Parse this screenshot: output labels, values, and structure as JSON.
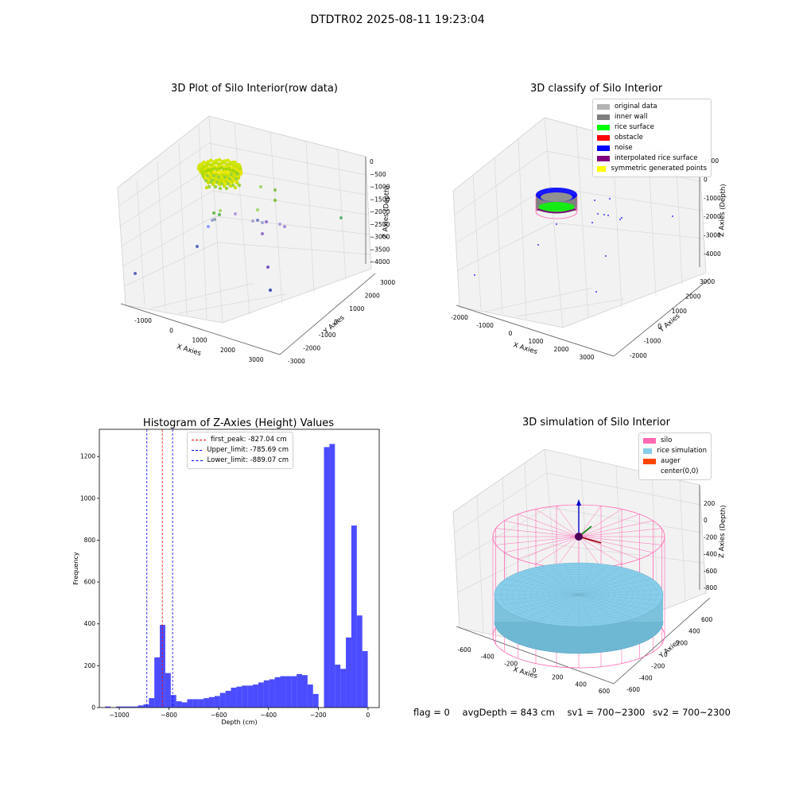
{
  "suptitle": "DTDTR02 2025-08-11 19:23:04",
  "colors": {
    "silo_wire": "#ff69b4",
    "rice_sim": "#87ceeb",
    "hist_bar": "#0000ff",
    "peak_line": "#ff0000",
    "limit_line": "#0000ff",
    "grid": "#d9d9d9",
    "pane_bg": "#f2f2f2"
  },
  "panels": {
    "raw": {
      "title": "3D Plot of Silo Interior(row data)",
      "xlabel": "X Axies",
      "ylabel": "Y Axies",
      "zlabel": "Z Axies (Depth)",
      "xticks": [
        "-1000",
        "0",
        "1000",
        "2000",
        "3000"
      ],
      "yticks": [
        "-3000",
        "-2000",
        "-1000",
        "0",
        "1000",
        "2000",
        "3000"
      ],
      "zticks": [
        "0",
        "−500",
        "−1000",
        "−1500",
        "−2000",
        "−2500",
        "−3000",
        "−3500",
        "−4000"
      ]
    },
    "classify": {
      "title": "3D classify of Silo Interior",
      "xlabel": "X Axies",
      "ylabel": "Y Axies",
      "zlabel": "Z Axies (Depth)",
      "xticks": [
        "-2000",
        "-1000",
        "0",
        "1000",
        "2000",
        "3000"
      ],
      "yticks": [
        "-2000",
        "-1000",
        "0",
        "1000",
        "2000",
        "3000"
      ],
      "zticks": [
        "1000",
        "0",
        "-1000",
        "-2000",
        "-3000",
        "-4000"
      ],
      "legend": [
        {
          "label": "original data",
          "color": "#b3b3b3"
        },
        {
          "label": "inner wall",
          "color": "#808080"
        },
        {
          "label": "rice surface",
          "color": "#00ff00"
        },
        {
          "label": "obstacle",
          "color": "#ff0000"
        },
        {
          "label": "noise",
          "color": "#0000ff"
        },
        {
          "label": "interpolated rice surface",
          "color": "#800080"
        },
        {
          "label": "symmetric generated points",
          "color": "#ffff00"
        }
      ]
    },
    "simulation": {
      "title": "3D simulation of Silo Interior",
      "xlabel": "X Axies",
      "ylabel": "Y Axies",
      "zlabel": "Z Axies (Depth)",
      "xticks": [
        "-600",
        "-400",
        "-200",
        "0",
        "200",
        "400",
        "600"
      ],
      "yticks": [
        "-600",
        "-400",
        "-200",
        "0",
        "200",
        "400",
        "600"
      ],
      "zticks": [
        "200",
        "0",
        "-200",
        "-400",
        "-600",
        "-800"
      ],
      "legend": [
        {
          "label": "silo",
          "color": "#ff69b4"
        },
        {
          "label": "rice simulation",
          "color": "#87ceeb"
        },
        {
          "label": "auger",
          "color": "#ff4500"
        },
        {
          "label": "center(0,0)",
          "color": ""
        }
      ]
    }
  },
  "status": {
    "flag": "flag = 0",
    "avg": "avgDepth = 843 cm",
    "sv1": "sv1 = 700~2300",
    "sv2": "sv2 = 700~2300"
  },
  "chart_data": {
    "type": "bar",
    "title": "Histogram of Z-Axies (Height) Values",
    "xlabel": "Depth (cm)",
    "ylabel": "Frequency",
    "xlim": [
      -1080,
      45
    ],
    "ylim": [
      0,
      1330
    ],
    "xticks": [
      -1000,
      -800,
      -600,
      -400,
      -200,
      0
    ],
    "yticks": [
      0,
      200,
      400,
      600,
      800,
      1000,
      1200
    ],
    "bin_width": 22,
    "bins": [
      {
        "x": -1046,
        "y": 5
      },
      {
        "x": -1024,
        "y": 0
      },
      {
        "x": -1002,
        "y": 5
      },
      {
        "x": -980,
        "y": 5
      },
      {
        "x": -958,
        "y": 5
      },
      {
        "x": -936,
        "y": 5
      },
      {
        "x": -914,
        "y": 10
      },
      {
        "x": -892,
        "y": 15
      },
      {
        "x": -870,
        "y": 45
      },
      {
        "x": -848,
        "y": 240
      },
      {
        "x": -826,
        "y": 395
      },
      {
        "x": -804,
        "y": 165
      },
      {
        "x": -782,
        "y": 60
      },
      {
        "x": -760,
        "y": 30
      },
      {
        "x": -738,
        "y": 25
      },
      {
        "x": -716,
        "y": 40
      },
      {
        "x": -694,
        "y": 40
      },
      {
        "x": -672,
        "y": 40
      },
      {
        "x": -650,
        "y": 45
      },
      {
        "x": -628,
        "y": 50
      },
      {
        "x": -606,
        "y": 55
      },
      {
        "x": -584,
        "y": 70
      },
      {
        "x": -562,
        "y": 80
      },
      {
        "x": -540,
        "y": 95
      },
      {
        "x": -518,
        "y": 100
      },
      {
        "x": -496,
        "y": 105
      },
      {
        "x": -474,
        "y": 105
      },
      {
        "x": -452,
        "y": 110
      },
      {
        "x": -430,
        "y": 120
      },
      {
        "x": -408,
        "y": 130
      },
      {
        "x": -386,
        "y": 135
      },
      {
        "x": -364,
        "y": 145
      },
      {
        "x": -342,
        "y": 150
      },
      {
        "x": -320,
        "y": 150
      },
      {
        "x": -298,
        "y": 150
      },
      {
        "x": -276,
        "y": 160
      },
      {
        "x": -254,
        "y": 155
      },
      {
        "x": -232,
        "y": 110
      },
      {
        "x": -210,
        "y": 65
      },
      {
        "x": -188,
        "y": 0
      },
      {
        "x": -166,
        "y": 1245
      },
      {
        "x": -144,
        "y": 1260
      },
      {
        "x": -122,
        "y": 205
      },
      {
        "x": -100,
        "y": 185
      },
      {
        "x": -78,
        "y": 335
      },
      {
        "x": -56,
        "y": 870
      },
      {
        "x": -34,
        "y": 440
      },
      {
        "x": -12,
        "y": 270
      }
    ],
    "vlines": [
      {
        "label": "first_peak: -827.04 cm",
        "x": -827.04,
        "color": "#ff0000"
      },
      {
        "label": "Upper_limit: -785.69 cm",
        "x": -785.69,
        "color": "#0000ff"
      },
      {
        "label": "Lower_limit: -889.07 cm",
        "x": -889.07,
        "color": "#0000ff"
      }
    ]
  }
}
